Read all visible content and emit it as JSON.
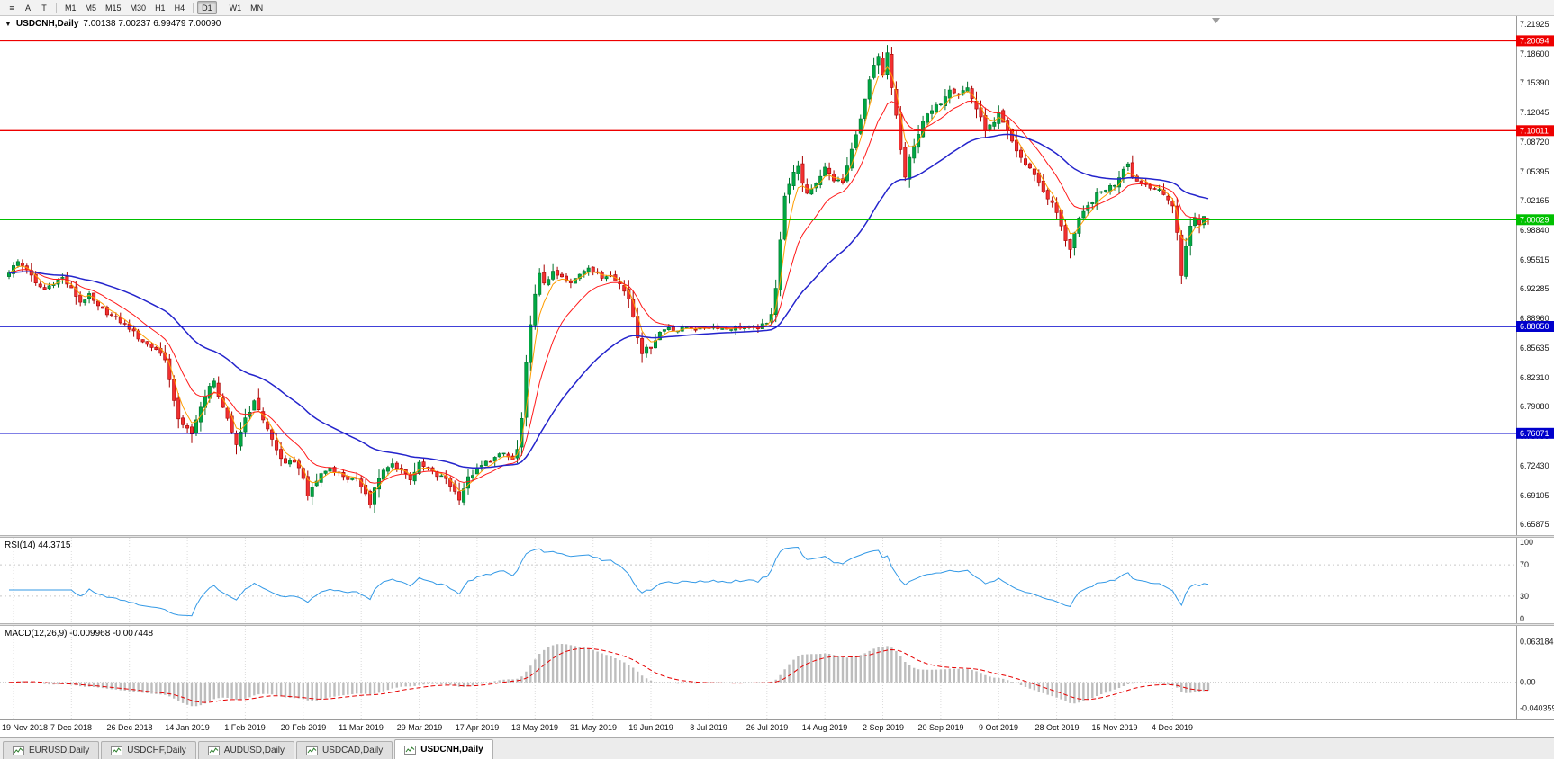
{
  "toolbar": {
    "tools": [
      {
        "name": "charts-menu",
        "glyph": "≡"
      },
      {
        "name": "cursor",
        "glyph": "A"
      },
      {
        "name": "text",
        "glyph": "T"
      }
    ],
    "timeframes": [
      "M1",
      "M5",
      "M15",
      "M30",
      "H1",
      "H4",
      "D1",
      "W1",
      "MN"
    ],
    "active_timeframe": "D1"
  },
  "chart": {
    "title_symbol": "USDCNH,Daily",
    "title_ohlc": "7.00138 7.00237 6.99479 7.00090",
    "menu_arrow": "▼",
    "y_labels": [
      "7.21925",
      "7.18600",
      "7.15390",
      "7.12045",
      "7.08720",
      "7.05395",
      "7.02165",
      "6.98840",
      "6.95515",
      "6.92285",
      "6.88960",
      "6.85635",
      "6.82310",
      "6.79080",
      "6.75755",
      "6.72430",
      "6.69105",
      "6.65875"
    ],
    "time_labels": [
      "19 Nov 2018",
      "7 Dec 2018",
      "26 Dec 2018",
      "14 Jan 2019",
      "1 Feb 2019",
      "20 Feb 2019",
      "11 Mar 2019",
      "29 Mar 2019",
      "17 Apr 2019",
      "13 May 2019",
      "31 May 2019",
      "19 Jun 2019",
      "8 Jul 2019",
      "26 Jul 2019",
      "14 Aug 2019",
      "2 Sep 2019",
      "20 Sep 2019",
      "9 Oct 2019",
      "28 Oct 2019",
      "15 Nov 2019",
      "4 Dec 2019"
    ],
    "hlines": [
      {
        "price": 7.20094,
        "label": "7.20094",
        "color": "#ee0000"
      },
      {
        "price": 7.10011,
        "label": "7.10011",
        "color": "#ee0000"
      },
      {
        "price": 7.00029,
        "label": "7.00029",
        "color": "#00c000"
      },
      {
        "price": 6.8805,
        "label": "6.88050",
        "color": "#0000cc"
      },
      {
        "price": 6.76071,
        "label": "6.76071",
        "color": "#0000cc"
      }
    ],
    "colors": {
      "bull": "#00a843",
      "bull_border": "#00702c",
      "bear": "#f23030",
      "bear_border": "#a80000",
      "ma_fast": "#ff9d00",
      "ma_mid": "#ff1a1a",
      "ma_slow": "#2424cc",
      "rsi_line": "#3399e6",
      "macd_hist": "#bdbdbd",
      "macd_signal": "#e60000"
    }
  },
  "rsi": {
    "label": "RSI(14) 44.3715",
    "period": 14,
    "current": 44.3715,
    "levels": [
      70,
      30
    ],
    "scale": [
      {
        "label": "100",
        "value": 100
      },
      {
        "label": "70",
        "value": 70
      },
      {
        "label": "30",
        "value": 30
      },
      {
        "label": "0",
        "value": 0
      }
    ]
  },
  "macd": {
    "label": "MACD(12,26,9) -0.009968 -0.007448",
    "params": [
      12,
      26,
      9
    ],
    "main_value": -0.009968,
    "signal_value": -0.007448,
    "scale": [
      {
        "label": "0.063184",
        "value": 0.063184
      },
      {
        "label": "0.00",
        "value": 0
      },
      {
        "label": "-0.040359",
        "value": -0.040359
      }
    ]
  },
  "tabs": {
    "items": [
      {
        "label": "EURUSD,Daily",
        "active": false
      },
      {
        "label": "USDCHF,Daily",
        "active": false
      },
      {
        "label": "AUDUSD,Daily",
        "active": false
      },
      {
        "label": "USDCAD,Daily",
        "active": false
      },
      {
        "label": "USDCNH,Daily",
        "active": true
      }
    ]
  },
  "chart_data": {
    "type": "candlestick",
    "symbol": "USDCNH",
    "timeframe": "Daily",
    "n": 270,
    "last_candle": {
      "open": 7.00138,
      "high": 7.00237,
      "low": 6.99479,
      "close": 7.0009
    },
    "price_axis": {
      "top": 7.2245,
      "bottom": 6.6505
    },
    "macd_axis": {
      "max": 0.082,
      "min": -0.052
    },
    "label_indices": [
      1,
      14,
      27,
      40,
      53,
      66,
      79,
      92,
      105,
      118,
      131,
      144,
      157,
      170,
      183,
      196,
      209,
      222,
      235,
      248,
      261
    ],
    "ma_periods": {
      "fast": 4,
      "mid": 12,
      "slow": 40
    },
    "price_anchors": [
      [
        0,
        6.942
      ],
      [
        2,
        6.953
      ],
      [
        4,
        6.945
      ],
      [
        6,
        6.928
      ],
      [
        8,
        6.922
      ],
      [
        10,
        6.93
      ],
      [
        12,
        6.935
      ],
      [
        14,
        6.922
      ],
      [
        16,
        6.908
      ],
      [
        18,
        6.915
      ],
      [
        20,
        6.902
      ],
      [
        22,
        6.896
      ],
      [
        25,
        6.886
      ],
      [
        27,
        6.879
      ],
      [
        29,
        6.868
      ],
      [
        31,
        6.86
      ],
      [
        33,
        6.855
      ],
      [
        35,
        6.845
      ],
      [
        36,
        6.82
      ],
      [
        37,
        6.795
      ],
      [
        38,
        6.778
      ],
      [
        40,
        6.765
      ],
      [
        41,
        6.758
      ],
      [
        43,
        6.792
      ],
      [
        45,
        6.812
      ],
      [
        46,
        6.818
      ],
      [
        48,
        6.79
      ],
      [
        50,
        6.76
      ],
      [
        51,
        6.748
      ],
      [
        53,
        6.778
      ],
      [
        55,
        6.795
      ],
      [
        56,
        6.788
      ],
      [
        58,
        6.765
      ],
      [
        60,
        6.742
      ],
      [
        62,
        6.725
      ],
      [
        64,
        6.73
      ],
      [
        66,
        6.712
      ],
      [
        67,
        6.688
      ],
      [
        68,
        6.7
      ],
      [
        70,
        6.715
      ],
      [
        72,
        6.722
      ],
      [
        74,
        6.716
      ],
      [
        76,
        6.71
      ],
      [
        78,
        6.708
      ],
      [
        80,
        6.695
      ],
      [
        81,
        6.68
      ],
      [
        82,
        6.7
      ],
      [
        84,
        6.718
      ],
      [
        86,
        6.726
      ],
      [
        88,
        6.72
      ],
      [
        90,
        6.71
      ],
      [
        92,
        6.726
      ],
      [
        94,
        6.72
      ],
      [
        96,
        6.713
      ],
      [
        98,
        6.71
      ],
      [
        100,
        6.695
      ],
      [
        101,
        6.688
      ],
      [
        103,
        6.71
      ],
      [
        105,
        6.72
      ],
      [
        107,
        6.728
      ],
      [
        109,
        6.733
      ],
      [
        111,
        6.738
      ],
      [
        113,
        6.73
      ],
      [
        114,
        6.742
      ],
      [
        115,
        6.775
      ],
      [
        116,
        6.838
      ],
      [
        117,
        6.885
      ],
      [
        118,
        6.915
      ],
      [
        119,
        6.938
      ],
      [
        120,
        6.93
      ],
      [
        122,
        6.94
      ],
      [
        124,
        6.935
      ],
      [
        126,
        6.928
      ],
      [
        128,
        6.94
      ],
      [
        130,
        6.948
      ],
      [
        131,
        6.942
      ],
      [
        133,
        6.935
      ],
      [
        135,
        6.94
      ],
      [
        137,
        6.928
      ],
      [
        139,
        6.912
      ],
      [
        140,
        6.892
      ],
      [
        141,
        6.87
      ],
      [
        142,
        6.852
      ],
      [
        144,
        6.858
      ],
      [
        146,
        6.874
      ],
      [
        148,
        6.88
      ],
      [
        150,
        6.876
      ],
      [
        152,
        6.88
      ],
      [
        155,
        6.878
      ],
      [
        158,
        6.881
      ],
      [
        161,
        6.878
      ],
      [
        164,
        6.88
      ],
      [
        167,
        6.878
      ],
      [
        170,
        6.883
      ],
      [
        171,
        6.896
      ],
      [
        172,
        6.925
      ],
      [
        173,
        6.978
      ],
      [
        174,
        7.025
      ],
      [
        175,
        7.042
      ],
      [
        176,
        7.052
      ],
      [
        177,
        7.058
      ],
      [
        178,
        7.042
      ],
      [
        179,
        7.03
      ],
      [
        181,
        7.042
      ],
      [
        183,
        7.058
      ],
      [
        185,
        7.045
      ],
      [
        187,
        7.042
      ],
      [
        189,
        7.078
      ],
      [
        190,
        7.098
      ],
      [
        191,
        7.112
      ],
      [
        192,
        7.135
      ],
      [
        193,
        7.155
      ],
      [
        194,
        7.172
      ],
      [
        195,
        7.182
      ],
      [
        196,
        7.162
      ],
      [
        197,
        7.186
      ],
      [
        198,
        7.148
      ],
      [
        199,
        7.118
      ],
      [
        200,
        7.078
      ],
      [
        201,
        7.048
      ],
      [
        202,
        7.068
      ],
      [
        203,
        7.082
      ],
      [
        204,
        7.098
      ],
      [
        205,
        7.112
      ],
      [
        207,
        7.122
      ],
      [
        209,
        7.132
      ],
      [
        211,
        7.148
      ],
      [
        213,
        7.142
      ],
      [
        215,
        7.148
      ],
      [
        217,
        7.125
      ],
      [
        219,
        7.102
      ],
      [
        221,
        7.108
      ],
      [
        222,
        7.118
      ],
      [
        224,
        7.098
      ],
      [
        226,
        7.078
      ],
      [
        228,
        7.062
      ],
      [
        230,
        7.052
      ],
      [
        232,
        7.032
      ],
      [
        234,
        7.018
      ],
      [
        235,
        7.008
      ],
      [
        236,
        6.992
      ],
      [
        237,
        6.978
      ],
      [
        238,
        6.968
      ],
      [
        239,
        6.985
      ],
      [
        240,
        7.0
      ],
      [
        242,
        7.015
      ],
      [
        244,
        7.028
      ],
      [
        246,
        7.035
      ],
      [
        248,
        7.04
      ],
      [
        250,
        7.058
      ],
      [
        251,
        7.065
      ],
      [
        252,
        7.048
      ],
      [
        254,
        7.042
      ],
      [
        256,
        7.038
      ],
      [
        258,
        7.032
      ],
      [
        260,
        7.024
      ],
      [
        261,
        7.016
      ],
      [
        262,
        6.985
      ],
      [
        263,
        6.938
      ],
      [
        264,
        6.972
      ],
      [
        265,
        6.992
      ],
      [
        266,
        7.002
      ],
      [
        267,
        6.996
      ],
      [
        268,
        7.004
      ],
      [
        269,
        7.0009
      ]
    ]
  }
}
